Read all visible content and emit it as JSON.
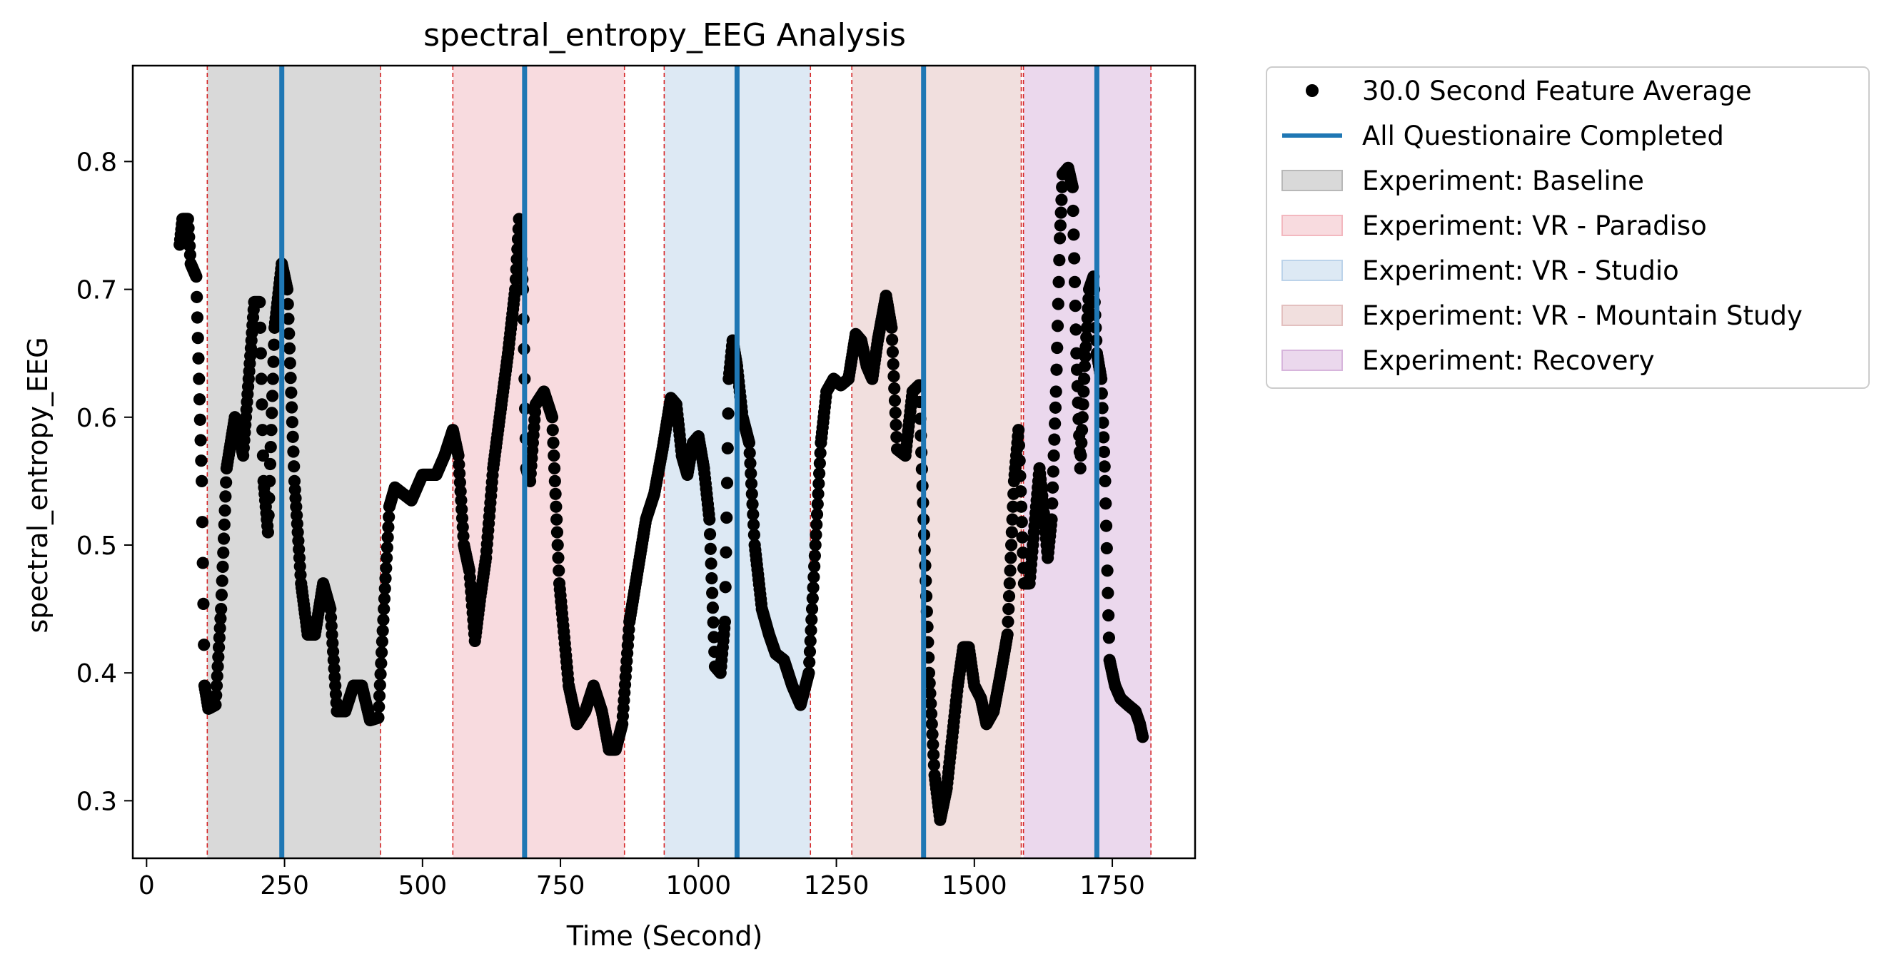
{
  "chart_data": {
    "type": "scatter",
    "title": "spectral_entropy_EEG Analysis",
    "xlabel": "Time (Second)",
    "ylabel": "spectral_entropy_EEG",
    "xlim": [
      -25,
      1900
    ],
    "ylim": [
      0.255,
      0.875
    ],
    "xticks": [
      0,
      250,
      500,
      750,
      1000,
      1250,
      1500,
      1750
    ],
    "yticks": [
      0.3,
      0.4,
      0.5,
      0.6,
      0.7,
      0.8
    ],
    "legend_position": "outside-top-right",
    "series": [
      {
        "name": "30.0 Second Feature Average",
        "type": "scatter",
        "color": "#000000",
        "keypoints": [
          [
            60,
            0.735
          ],
          [
            65,
            0.755
          ],
          [
            75,
            0.755
          ],
          [
            80,
            0.72
          ],
          [
            90,
            0.71
          ],
          [
            100,
            0.55
          ],
          [
            105,
            0.39
          ],
          [
            112,
            0.372
          ],
          [
            125,
            0.375
          ],
          [
            135,
            0.45
          ],
          [
            145,
            0.56
          ],
          [
            160,
            0.6
          ],
          [
            175,
            0.57
          ],
          [
            185,
            0.63
          ],
          [
            195,
            0.69
          ],
          [
            205,
            0.69
          ],
          [
            212,
            0.55
          ],
          [
            220,
            0.51
          ],
          [
            232,
            0.67
          ],
          [
            245,
            0.72
          ],
          [
            255,
            0.7
          ],
          [
            268,
            0.55
          ],
          [
            280,
            0.47
          ],
          [
            292,
            0.43
          ],
          [
            305,
            0.43
          ],
          [
            320,
            0.47
          ],
          [
            333,
            0.45
          ],
          [
            345,
            0.37
          ],
          [
            360,
            0.37
          ],
          [
            375,
            0.39
          ],
          [
            390,
            0.39
          ],
          [
            405,
            0.363
          ],
          [
            420,
            0.365
          ],
          [
            430,
            0.45
          ],
          [
            440,
            0.53
          ],
          [
            450,
            0.545
          ],
          [
            465,
            0.54
          ],
          [
            480,
            0.535
          ],
          [
            500,
            0.555
          ],
          [
            525,
            0.555
          ],
          [
            540,
            0.57
          ],
          [
            555,
            0.59
          ],
          [
            565,
            0.57
          ],
          [
            575,
            0.5
          ],
          [
            585,
            0.48
          ],
          [
            595,
            0.425
          ],
          [
            605,
            0.46
          ],
          [
            615,
            0.49
          ],
          [
            628,
            0.56
          ],
          [
            640,
            0.6
          ],
          [
            655,
            0.65
          ],
          [
            668,
            0.7
          ],
          [
            675,
            0.755
          ],
          [
            682,
            0.7
          ],
          [
            688,
            0.56
          ],
          [
            695,
            0.55
          ],
          [
            705,
            0.61
          ],
          [
            720,
            0.62
          ],
          [
            735,
            0.6
          ],
          [
            748,
            0.47
          ],
          [
            765,
            0.39
          ],
          [
            780,
            0.36
          ],
          [
            795,
            0.37
          ],
          [
            810,
            0.39
          ],
          [
            825,
            0.37
          ],
          [
            838,
            0.34
          ],
          [
            850,
            0.34
          ],
          [
            862,
            0.36
          ],
          [
            875,
            0.44
          ],
          [
            890,
            0.48
          ],
          [
            905,
            0.52
          ],
          [
            920,
            0.54
          ],
          [
            935,
            0.575
          ],
          [
            950,
            0.615
          ],
          [
            960,
            0.61
          ],
          [
            970,
            0.57
          ],
          [
            980,
            0.555
          ],
          [
            990,
            0.58
          ],
          [
            1000,
            0.585
          ],
          [
            1010,
            0.56
          ],
          [
            1020,
            0.52
          ],
          [
            1030,
            0.405
          ],
          [
            1040,
            0.4
          ],
          [
            1048,
            0.44
          ],
          [
            1055,
            0.63
          ],
          [
            1062,
            0.66
          ],
          [
            1070,
            0.64
          ],
          [
            1080,
            0.6
          ],
          [
            1092,
            0.58
          ],
          [
            1102,
            0.5
          ],
          [
            1115,
            0.45
          ],
          [
            1128,
            0.43
          ],
          [
            1140,
            0.415
          ],
          [
            1155,
            0.41
          ],
          [
            1170,
            0.39
          ],
          [
            1185,
            0.375
          ],
          [
            1200,
            0.4
          ],
          [
            1212,
            0.5
          ],
          [
            1222,
            0.58
          ],
          [
            1232,
            0.62
          ],
          [
            1245,
            0.63
          ],
          [
            1258,
            0.625
          ],
          [
            1272,
            0.63
          ],
          [
            1285,
            0.665
          ],
          [
            1295,
            0.66
          ],
          [
            1305,
            0.64
          ],
          [
            1315,
            0.63
          ],
          [
            1325,
            0.66
          ],
          [
            1340,
            0.695
          ],
          [
            1350,
            0.67
          ],
          [
            1360,
            0.575
          ],
          [
            1375,
            0.57
          ],
          [
            1388,
            0.62
          ],
          [
            1400,
            0.625
          ],
          [
            1408,
            0.52
          ],
          [
            1418,
            0.4
          ],
          [
            1428,
            0.32
          ],
          [
            1438,
            0.285
          ],
          [
            1450,
            0.31
          ],
          [
            1460,
            0.35
          ],
          [
            1470,
            0.39
          ],
          [
            1480,
            0.42
          ],
          [
            1490,
            0.42
          ],
          [
            1500,
            0.39
          ],
          [
            1512,
            0.38
          ],
          [
            1522,
            0.36
          ],
          [
            1535,
            0.37
          ],
          [
            1548,
            0.4
          ],
          [
            1560,
            0.43
          ],
          [
            1572,
            0.55
          ],
          [
            1580,
            0.59
          ],
          [
            1590,
            0.47
          ],
          [
            1600,
            0.47
          ],
          [
            1610,
            0.52
          ],
          [
            1618,
            0.56
          ],
          [
            1625,
            0.53
          ],
          [
            1633,
            0.49
          ],
          [
            1640,
            0.52
          ],
          [
            1648,
            0.62
          ],
          [
            1655,
            0.74
          ],
          [
            1660,
            0.79
          ],
          [
            1670,
            0.795
          ],
          [
            1678,
            0.78
          ],
          [
            1685,
            0.65
          ],
          [
            1692,
            0.56
          ],
          [
            1700,
            0.64
          ],
          [
            1708,
            0.7
          ],
          [
            1716,
            0.71
          ],
          [
            1722,
            0.65
          ],
          [
            1730,
            0.63
          ],
          [
            1737,
            0.55
          ],
          [
            1745,
            0.41
          ],
          [
            1755,
            0.39
          ],
          [
            1765,
            0.38
          ],
          [
            1778,
            0.375
          ],
          [
            1792,
            0.37
          ],
          [
            1800,
            0.36
          ],
          [
            1805,
            0.35
          ]
        ]
      },
      {
        "name": "All Questionaire Completed",
        "type": "vlines",
        "color": "#1f77b4",
        "x": [
          245,
          685,
          1070,
          1408,
          1722
        ]
      }
    ],
    "regions": [
      {
        "name": "Experiment: Baseline",
        "color": "#d9d9d9",
        "stroke": "#b8b8b8",
        "ranges": [
          [
            110,
            424
          ]
        ]
      },
      {
        "name": "Experiment: VR - Paradiso",
        "color": "#f8dbdf",
        "stroke": "#f3b8bf",
        "ranges": [
          [
            555,
            866
          ]
        ]
      },
      {
        "name": "Experiment: VR - Studio",
        "color": "#dde9f4",
        "stroke": "#bcd3ea",
        "ranges": [
          [
            938,
            1203
          ]
        ]
      },
      {
        "name": "Experiment: VR - Mountain Study",
        "color": "#f1dfde",
        "stroke": "#e3c0bf",
        "ranges": [
          [
            1278,
            1585
          ]
        ]
      },
      {
        "name": "Experiment: Recovery",
        "color": "#ebd8ed",
        "stroke": "#d7b5dc",
        "ranges": [
          [
            1589,
            1820
          ]
        ]
      }
    ],
    "boundary_lines": {
      "color": "#d62728",
      "x": [
        110,
        424,
        555,
        866,
        938,
        1203,
        1278,
        1585,
        1589,
        1820
      ]
    }
  }
}
